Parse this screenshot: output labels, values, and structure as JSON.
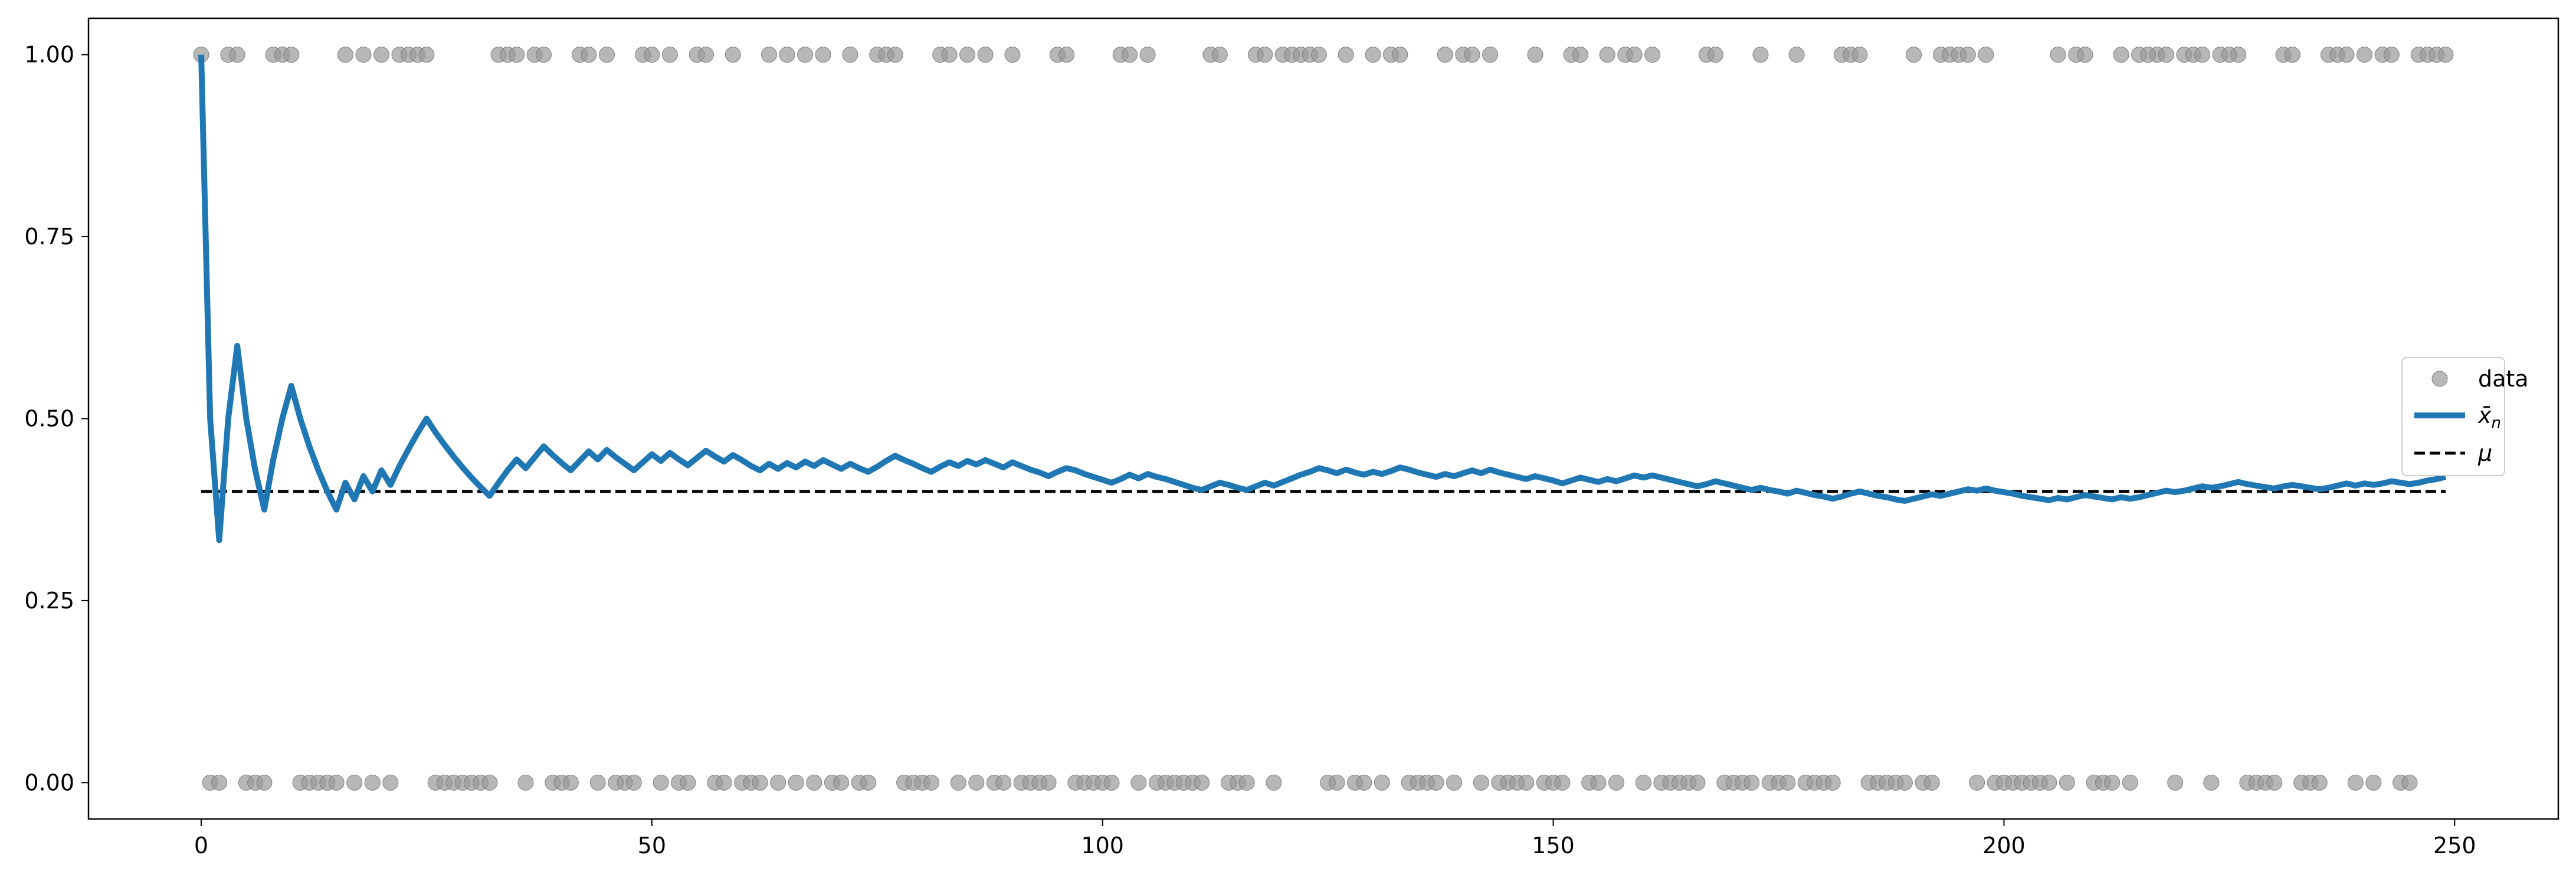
{
  "chart_data": {
    "type": "line",
    "title": "",
    "xlabel": "",
    "ylabel": "",
    "xlim": [
      -12.5,
      261.5
    ],
    "ylim": [
      -0.05,
      1.05
    ],
    "x_ticks": [
      0,
      50,
      100,
      150,
      200,
      250
    ],
    "x_tick_labels": [
      "0",
      "50",
      "100",
      "150",
      "200",
      "250"
    ],
    "y_ticks": [
      0.0,
      0.25,
      0.5,
      0.75,
      1.0
    ],
    "y_tick_labels": [
      "0.00",
      "0.25",
      "0.50",
      "0.75",
      "1.00"
    ],
    "grid": false,
    "legend_placement": "center-right",
    "legend": [
      {
        "label": "data",
        "marker": "circle",
        "color": "#999999"
      },
      {
        "label": "x̄",
        "label_sub": "n",
        "marker": "line",
        "color": "#1f77b4"
      },
      {
        "label": "μ",
        "marker": "dashed-line",
        "color": "#000000"
      }
    ],
    "series": [
      {
        "name": "data",
        "kind": "scatter",
        "color": "#999999",
        "x": [
          0,
          1,
          2,
          3,
          4,
          5,
          6,
          7,
          8,
          9,
          10,
          11,
          12,
          13,
          14,
          15,
          16,
          17,
          18,
          19,
          20,
          21,
          22,
          23,
          24,
          25,
          26,
          27,
          28,
          29,
          30,
          31,
          32,
          33,
          34,
          35,
          36,
          37,
          38,
          39,
          40,
          41,
          42,
          43,
          44,
          45,
          46,
          47,
          48,
          49,
          50,
          51,
          52,
          53,
          54,
          55,
          56,
          57,
          58,
          59,
          60,
          61,
          62,
          63,
          64,
          65,
          66,
          67,
          68,
          69,
          70,
          71,
          72,
          73,
          74,
          75,
          76,
          77,
          78,
          79,
          80,
          81,
          82,
          83,
          84,
          85,
          86,
          87,
          88,
          89,
          90,
          91,
          92,
          93,
          94,
          95,
          96,
          97,
          98,
          99,
          100,
          101,
          102,
          103,
          104,
          105,
          106,
          107,
          108,
          109,
          110,
          111,
          112,
          113,
          114,
          115,
          116,
          117,
          118,
          119,
          120,
          121,
          122,
          123,
          124,
          125,
          126,
          127,
          128,
          129,
          130,
          131,
          132,
          133,
          134,
          135,
          136,
          137,
          138,
          139,
          140,
          141,
          142,
          143,
          144,
          145,
          146,
          147,
          148,
          149,
          150,
          151,
          152,
          153,
          154,
          155,
          156,
          157,
          158,
          159,
          160,
          161,
          162,
          163,
          164,
          165,
          166,
          167,
          168,
          169,
          170,
          171,
          172,
          173,
          174,
          175,
          176,
          177,
          178,
          179,
          180,
          181,
          182,
          183,
          184,
          185,
          186,
          187,
          188,
          189,
          190,
          191,
          192,
          193,
          194,
          195,
          196,
          197,
          198,
          199,
          200,
          201,
          202,
          203,
          204,
          205,
          206,
          207,
          208,
          209,
          210,
          211,
          212,
          213,
          214,
          215,
          216,
          217,
          218,
          219,
          220,
          221,
          222,
          223,
          224,
          225,
          226,
          227,
          228,
          229,
          230,
          231,
          232,
          233,
          234,
          235,
          236,
          237,
          238,
          239,
          240,
          241,
          242,
          243,
          244,
          245,
          246,
          247,
          248,
          249
        ],
        "y": [
          1,
          0,
          0,
          1,
          1,
          0,
          0,
          0,
          1,
          1,
          1,
          0,
          0,
          0,
          0,
          0,
          1,
          0,
          1,
          0,
          1,
          0,
          1,
          1,
          1,
          1,
          0,
          0,
          0,
          0,
          0,
          0,
          0,
          1,
          1,
          1,
          0,
          1,
          1,
          0,
          0,
          0,
          1,
          1,
          0,
          1,
          0,
          0,
          0,
          1,
          1,
          0,
          1,
          0,
          0,
          1,
          1,
          0,
          0,
          1,
          0,
          0,
          0,
          1,
          0,
          1,
          0,
          1,
          0,
          1,
          0,
          0,
          1,
          0,
          0,
          1,
          1,
          1,
          0,
          0,
          0,
          0,
          1,
          1,
          0,
          1,
          0,
          1,
          0,
          0,
          1,
          0,
          0,
          0,
          0,
          1,
          1,
          0,
          0,
          0,
          0,
          0,
          1,
          1,
          0,
          1,
          0,
          0,
          0,
          0,
          0,
          0,
          1,
          1,
          0,
          0,
          0,
          1,
          1,
          0,
          1,
          1,
          1,
          1,
          1,
          0,
          0,
          1,
          0,
          0,
          1,
          0,
          1,
          1,
          0,
          0,
          0,
          0,
          1,
          0,
          1,
          1,
          0,
          1,
          0,
          0,
          0,
          0,
          1,
          0,
          0,
          0,
          1,
          1,
          0,
          0,
          1,
          0,
          1,
          1,
          0,
          1,
          0,
          0,
          0,
          0,
          0,
          1,
          1,
          0,
          0,
          0,
          0,
          1,
          0,
          0,
          0,
          1,
          0,
          0,
          0,
          0,
          1,
          1,
          1,
          0,
          0,
          0,
          0,
          0,
          1,
          0,
          0,
          1,
          1,
          1,
          1,
          0,
          1,
          0,
          0,
          0,
          0,
          0,
          0,
          0,
          1,
          0,
          1,
          1,
          0,
          0,
          0,
          1,
          0,
          1,
          1,
          1,
          1,
          0,
          1,
          1,
          1,
          0,
          1,
          1,
          1,
          0,
          0,
          0,
          0,
          1,
          1,
          0,
          0,
          0,
          1,
          1,
          1,
          0,
          1,
          0,
          1,
          1,
          0,
          0,
          1,
          1,
          1,
          1
        ]
      },
      {
        "name": "x̄ₙ",
        "kind": "line",
        "color": "#1f77b4",
        "x": [
          0,
          1,
          2,
          3,
          4,
          5,
          6,
          7,
          8,
          9,
          10,
          11,
          12,
          13,
          14,
          15,
          16,
          17,
          18,
          19,
          20,
          21,
          22,
          23,
          24,
          25,
          26,
          27,
          28,
          29,
          30,
          31,
          32,
          33,
          34,
          35,
          36,
          37,
          38,
          39,
          40,
          41,
          42,
          43,
          44,
          45,
          46,
          47,
          48,
          49,
          50,
          51,
          52,
          53,
          54,
          55,
          56,
          57,
          58,
          59,
          60,
          61,
          62,
          63,
          64,
          65,
          66,
          67,
          68,
          69,
          70,
          71,
          72,
          73,
          74,
          75,
          76,
          77,
          78,
          79,
          80,
          81,
          82,
          83,
          84,
          85,
          86,
          87,
          88,
          89,
          90,
          91,
          92,
          93,
          94,
          95,
          96,
          97,
          98,
          99,
          100,
          101,
          102,
          103,
          104,
          105,
          106,
          107,
          108,
          109,
          110,
          111,
          112,
          113,
          114,
          115,
          116,
          117,
          118,
          119,
          120,
          121,
          122,
          123,
          124,
          125,
          126,
          127,
          128,
          129,
          130,
          131,
          132,
          133,
          134,
          135,
          136,
          137,
          138,
          139,
          140,
          141,
          142,
          143,
          144,
          145,
          146,
          147,
          148,
          149,
          150,
          151,
          152,
          153,
          154,
          155,
          156,
          157,
          158,
          159,
          160,
          161,
          162,
          163,
          164,
          165,
          166,
          167,
          168,
          169,
          170,
          171,
          172,
          173,
          174,
          175,
          176,
          177,
          178,
          179,
          180,
          181,
          182,
          183,
          184,
          185,
          186,
          187,
          188,
          189,
          190,
          191,
          192,
          193,
          194,
          195,
          196,
          197,
          198,
          199,
          200,
          201,
          202,
          203,
          204,
          205,
          206,
          207,
          208,
          209,
          210,
          211,
          212,
          213,
          214,
          215,
          216,
          217,
          218,
          219,
          220,
          221,
          222,
          223,
          224,
          225,
          226,
          227,
          228,
          229,
          230,
          231,
          232,
          233,
          234,
          235,
          236,
          237,
          238,
          239,
          240,
          241,
          242,
          243,
          244,
          245,
          246,
          247,
          248,
          249
        ],
        "y": [
          1.0,
          0.5,
          0.333,
          0.5,
          0.6,
          0.5,
          0.429,
          0.375,
          0.444,
          0.5,
          0.545,
          0.5,
          0.462,
          0.429,
          0.4,
          0.375,
          0.412,
          0.389,
          0.421,
          0.4,
          0.429,
          0.409,
          0.435,
          0.458,
          0.48,
          0.5,
          0.481,
          0.464,
          0.448,
          0.433,
          0.419,
          0.406,
          0.394,
          0.412,
          0.429,
          0.444,
          0.432,
          0.447,
          0.462,
          0.45,
          0.439,
          0.429,
          0.442,
          0.455,
          0.444,
          0.457,
          0.447,
          0.438,
          0.429,
          0.44,
          0.451,
          0.442,
          0.453,
          0.444,
          0.436,
          0.446,
          0.456,
          0.448,
          0.441,
          0.45,
          0.443,
          0.435,
          0.429,
          0.438,
          0.431,
          0.439,
          0.433,
          0.441,
          0.435,
          0.443,
          0.437,
          0.431,
          0.438,
          0.432,
          0.427,
          0.434,
          0.442,
          0.449,
          0.443,
          0.438,
          0.432,
          0.427,
          0.434,
          0.44,
          0.435,
          0.442,
          0.437,
          0.443,
          0.438,
          0.433,
          0.44,
          0.435,
          0.43,
          0.426,
          0.421,
          0.427,
          0.432,
          0.429,
          0.424,
          0.42,
          0.416,
          0.412,
          0.417,
          0.423,
          0.418,
          0.424,
          0.42,
          0.417,
          0.413,
          0.409,
          0.405,
          0.402,
          0.407,
          0.412,
          0.409,
          0.405,
          0.402,
          0.407,
          0.412,
          0.408,
          0.413,
          0.418,
          0.423,
          0.427,
          0.432,
          0.429,
          0.425,
          0.43,
          0.426,
          0.423,
          0.427,
          0.424,
          0.428,
          0.433,
          0.43,
          0.426,
          0.423,
          0.42,
          0.424,
          0.421,
          0.425,
          0.429,
          0.425,
          0.43,
          0.426,
          0.423,
          0.42,
          0.417,
          0.421,
          0.418,
          0.415,
          0.411,
          0.415,
          0.419,
          0.416,
          0.413,
          0.417,
          0.414,
          0.418,
          0.422,
          0.419,
          0.422,
          0.419,
          0.416,
          0.413,
          0.41,
          0.407,
          0.41,
          0.414,
          0.411,
          0.408,
          0.405,
          0.402,
          0.405,
          0.402,
          0.4,
          0.397,
          0.401,
          0.398,
          0.395,
          0.393,
          0.39,
          0.393,
          0.397,
          0.4,
          0.397,
          0.394,
          0.392,
          0.389,
          0.387,
          0.39,
          0.393,
          0.396,
          0.394,
          0.397,
          0.4,
          0.403,
          0.401,
          0.404,
          0.401,
          0.399,
          0.397,
          0.394,
          0.392,
          0.39,
          0.388,
          0.391,
          0.389,
          0.392,
          0.395,
          0.393,
          0.391,
          0.389,
          0.392,
          0.39,
          0.392,
          0.395,
          0.398,
          0.401,
          0.399,
          0.401,
          0.404,
          0.407,
          0.405,
          0.407,
          0.41,
          0.413,
          0.41,
          0.408,
          0.406,
          0.404,
          0.407,
          0.409,
          0.407,
          0.405,
          0.403,
          0.405,
          0.408,
          0.411,
          0.408,
          0.411,
          0.409,
          0.411,
          0.414,
          0.412,
          0.41,
          0.412,
          0.415,
          0.417,
          0.42
        ]
      },
      {
        "name": "μ",
        "kind": "hline",
        "color": "#000000",
        "y": 0.4,
        "x": [
          0,
          249
        ]
      }
    ]
  }
}
